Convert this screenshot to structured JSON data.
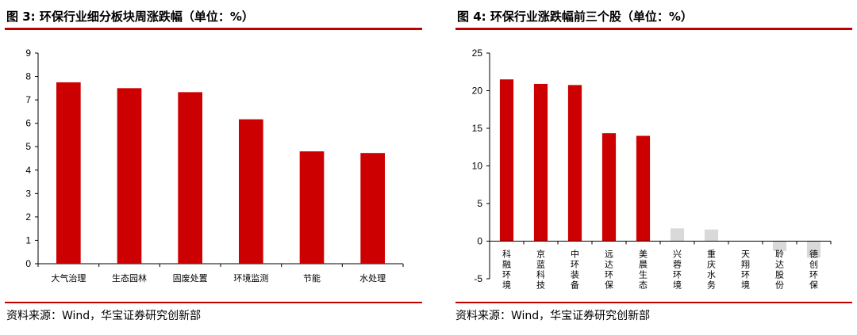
{
  "charts": [
    {
      "figure_label": "图 3:",
      "heading": "环保行业细分板块周涨跌幅（单位：%）",
      "source": "资料来源：Wind，华宝证券研究创新部"
    },
    {
      "figure_label": "图 4:",
      "heading": "环保行业涨跌幅前三个股（单位：%）",
      "source": "资料来源：Wind，华宝证券研究创新部"
    }
  ],
  "chart_data": [
    {
      "type": "bar",
      "title": "图 3: 环保行业细分板块周涨跌幅（单位：%）",
      "categories": [
        "大气治理",
        "生态园林",
        "固废处置",
        "环境监测",
        "节能",
        "水处理"
      ],
      "values": [
        7.75,
        7.5,
        7.33,
        6.17,
        4.8,
        4.73
      ],
      "ylim": [
        0,
        9
      ],
      "yticks": [
        0,
        1,
        2,
        3,
        4,
        5,
        6,
        7,
        8,
        9
      ],
      "xlabel": "",
      "ylabel": "",
      "grid": false,
      "legend": "none",
      "colors": {
        "bar": "#cc0000"
      }
    },
    {
      "type": "bar",
      "title": "图 4: 环保行业涨跌幅前三个股（单位：%）",
      "categories": [
        "科融环境",
        "京蓝科技",
        "中环装备",
        "远达环保",
        "美晨生态",
        "兴蓉环境",
        "重庆水务",
        "天翔环境",
        "聆达股份",
        "德创环保"
      ],
      "values": [
        21.5,
        20.9,
        20.75,
        14.35,
        14.0,
        1.7,
        1.55,
        0.0,
        -1.3,
        -2.2
      ],
      "ylim": [
        -5,
        25
      ],
      "yticks": [
        -5,
        0,
        5,
        10,
        15,
        20,
        25
      ],
      "xlabel": "",
      "ylabel": "",
      "grid": false,
      "legend": "none",
      "colors": {
        "top": "#cc0000",
        "other": "#d9d9d9"
      },
      "highlighted_count": 5
    }
  ]
}
